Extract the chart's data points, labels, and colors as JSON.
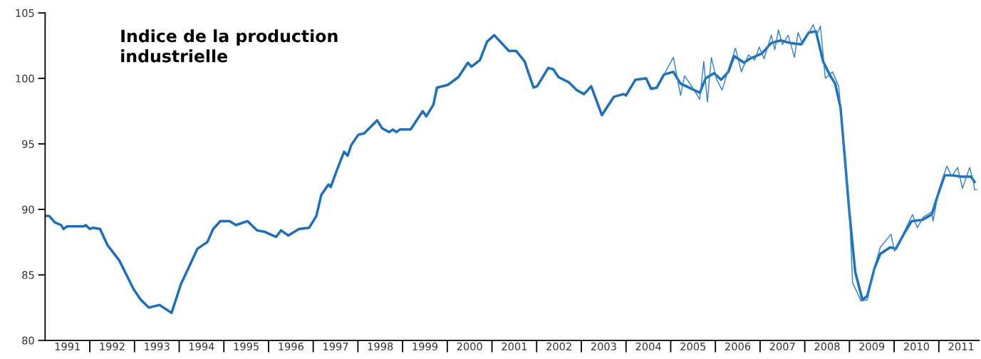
{
  "chart_data": {
    "type": "line",
    "title": "Indice de la production\nindustrielle",
    "xlim": [
      1991,
      2011.9
    ],
    "ylim": [
      80,
      105
    ],
    "yticks": [
      80,
      85,
      90,
      95,
      100,
      105
    ],
    "xticks": [
      {
        "value": 1991.5,
        "label": "1991"
      },
      {
        "value": 1992.5,
        "label": "1992"
      },
      {
        "value": 1993.5,
        "label": "1993"
      },
      {
        "value": 1994.5,
        "label": "1994"
      },
      {
        "value": 1995.5,
        "label": "1995"
      },
      {
        "value": 1996.5,
        "label": "1996"
      },
      {
        "value": 1997.5,
        "label": "1997"
      },
      {
        "value": 1998.5,
        "label": "1998"
      },
      {
        "value": 1999.5,
        "label": "1999"
      },
      {
        "value": 2000.5,
        "label": "2000"
      },
      {
        "value": 2001.5,
        "label": "2001"
      },
      {
        "value": 2002.5,
        "label": "2002"
      },
      {
        "value": 2003.5,
        "label": "2003"
      },
      {
        "value": 2004.5,
        "label": "2004"
      },
      {
        "value": 2005.5,
        "label": "2005"
      },
      {
        "value": 2006.5,
        "label": "2006"
      },
      {
        "value": 2007.5,
        "label": "2007"
      },
      {
        "value": 2008.5,
        "label": "2008"
      },
      {
        "value": 2009.5,
        "label": "2009"
      },
      {
        "value": 2010.5,
        "label": "2010"
      },
      {
        "value": 2011.5,
        "label": "2011"
      }
    ],
    "grid": false,
    "marker": "none",
    "line_style": "solid",
    "series": [
      {
        "color": "#1a6fc0",
        "x": [
          1991.0,
          1991.09,
          1991.22,
          1991.36,
          1991.41,
          1991.49,
          1991.86,
          1991.91,
          1992.0,
          1992.07,
          1992.23,
          1992.39,
          1992.66,
          1992.98,
          1993.14,
          1993.32,
          1993.56,
          1993.83,
          1994.04,
          1994.26,
          1994.41,
          1994.63,
          1994.76,
          1994.92,
          1995.13,
          1995.27,
          1995.53,
          1995.74,
          1995.9,
          1996.17,
          1996.28,
          1996.44,
          1996.68,
          1996.91,
          1997.07,
          1997.18,
          1997.34,
          1997.39,
          1997.53,
          1997.69,
          1997.77,
          1997.85,
          1998.01,
          1998.14,
          1998.43,
          1998.54,
          1998.7,
          1998.78,
          1998.86,
          1998.94,
          1999.18,
          1999.45,
          1999.53,
          1999.69,
          1999.77,
          2000.01,
          2000.25,
          2000.46,
          2000.54,
          2000.73,
          2000.89,
          2001.05,
          2001.38,
          2001.54,
          2001.73,
          2001.93,
          2002.01,
          2002.26,
          2002.37,
          2002.49,
          2002.72,
          2002.9,
          2003.06,
          2003.22,
          2003.46,
          2003.73,
          2003.94,
          2004.0,
          2004.21,
          2004.45,
          2004.56,
          2004.69,
          2004.85,
          2005.06,
          2005.22,
          2005.41,
          2005.65,
          2005.78,
          2005.97,
          2006.13,
          2006.29,
          2006.42,
          2006.64,
          2006.77,
          2007.04,
          2007.25,
          2007.46,
          2007.68,
          2007.92,
          2008.09,
          2008.25,
          2008.41,
          2008.57,
          2008.68,
          2008.8,
          2008.89,
          2009.0,
          2009.13,
          2009.29,
          2009.4,
          2009.56,
          2009.69,
          2009.91,
          2010.04,
          2010.23,
          2010.39,
          2010.63,
          2010.84,
          2010.97,
          2011.13,
          2011.29,
          2011.51,
          2011.72,
          2011.8
        ],
        "values": [
          89.5,
          89.5,
          89.0,
          88.8,
          88.5,
          88.7,
          88.7,
          88.8,
          88.5,
          88.6,
          88.5,
          87.3,
          86.1,
          83.9,
          83.1,
          82.5,
          82.7,
          82.1,
          84.3,
          85.9,
          87.0,
          87.5,
          88.5,
          89.1,
          89.1,
          88.8,
          89.1,
          88.4,
          88.3,
          87.9,
          88.4,
          88.0,
          88.5,
          88.6,
          89.5,
          91.1,
          91.9,
          91.7,
          93.0,
          94.4,
          94.1,
          94.9,
          95.7,
          95.8,
          96.8,
          96.2,
          95.9,
          96.1,
          95.9,
          96.1,
          96.1,
          97.5,
          97.1,
          98.0,
          99.3,
          99.5,
          100.1,
          101.2,
          100.9,
          101.4,
          102.8,
          103.3,
          102.1,
          102.1,
          101.3,
          99.3,
          99.4,
          100.8,
          100.7,
          100.1,
          99.7,
          99.1,
          98.8,
          99.4,
          97.2,
          98.6,
          98.8,
          98.7,
          99.9,
          100.0,
          99.2,
          99.3,
          100.3,
          100.5,
          99.6,
          99.3,
          98.9,
          100.0,
          100.4,
          99.9,
          100.5,
          101.7,
          101.2,
          101.5,
          101.9,
          102.7,
          102.9,
          102.7,
          102.6,
          103.5,
          103.6,
          101.3,
          100.2,
          99.6,
          97.8,
          94.2,
          89.7,
          85.2,
          83.1,
          83.4,
          85.5,
          86.6,
          87.1,
          87.0,
          88.2,
          89.1,
          89.2,
          89.6,
          91.0,
          92.6,
          92.6,
          92.5,
          92.5,
          92.1
        ]
      },
      {
        "color": "#2a80d0",
        "x": [
          2004.85,
          2005.06,
          2005.22,
          2005.31,
          2005.43,
          2005.65,
          2005.74,
          2005.82,
          2005.91,
          2006.02,
          2006.15,
          2006.29,
          2006.45,
          2006.58,
          2006.74,
          2006.88,
          2006.98,
          2007.09,
          2007.25,
          2007.33,
          2007.41,
          2007.5,
          2007.63,
          2007.77,
          2007.85,
          2007.95,
          2008.11,
          2008.19,
          2008.27,
          2008.35,
          2008.46,
          2008.62,
          2008.76,
          2008.89,
          2009.0,
          2009.07,
          2009.26,
          2009.4,
          2009.56,
          2009.69,
          2009.93,
          2010.01,
          2010.17,
          2010.41,
          2010.52,
          2010.65,
          2010.84,
          2010.87,
          2011.0,
          2011.18,
          2011.29,
          2011.42,
          2011.53,
          2011.69,
          2011.77,
          2011.8,
          2011.85
        ],
        "values": [
          100.3,
          101.6,
          98.7,
          100.2,
          99.6,
          98.4,
          101.3,
          98.2,
          101.6,
          100.0,
          99.1,
          100.7,
          102.3,
          100.5,
          101.8,
          101.4,
          102.4,
          101.5,
          103.3,
          102.2,
          103.7,
          102.6,
          103.3,
          101.6,
          103.5,
          102.6,
          103.6,
          104.1,
          103.3,
          104.0,
          100.0,
          100.5,
          99.4,
          94.2,
          89.7,
          84.4,
          83.0,
          83.1,
          85.6,
          87.1,
          88.1,
          86.8,
          87.9,
          89.6,
          88.6,
          89.4,
          89.8,
          89.1,
          91.5,
          93.3,
          92.5,
          93.2,
          91.6,
          93.2,
          92.2,
          91.5,
          91.5
        ]
      }
    ]
  }
}
